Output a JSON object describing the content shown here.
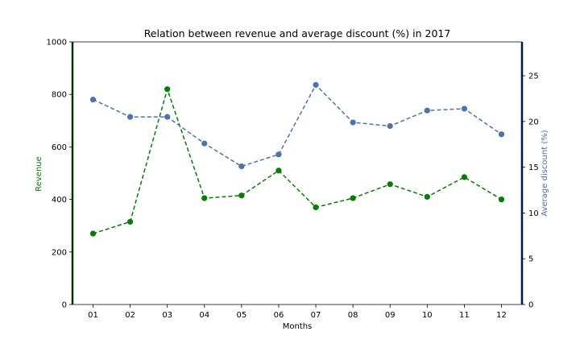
{
  "chart_data": {
    "type": "line",
    "title": "Relation between revenue and average discount (%) in 2017",
    "xlabel": "Months",
    "ylabel": "Revenue",
    "y2label": "Average discount (%)",
    "categories": [
      "01",
      "02",
      "03",
      "04",
      "05",
      "06",
      "07",
      "08",
      "09",
      "10",
      "11",
      "12"
    ],
    "ylim": [
      0,
      1000
    ],
    "y2lim": [
      0,
      28.7
    ],
    "yticks": [
      "0",
      "200",
      "400",
      "600",
      "800",
      "1000"
    ],
    "y2ticks": [
      "0",
      "5",
      "10",
      "15",
      "20",
      "25"
    ],
    "grid": false,
    "series": [
      {
        "axis": "left",
        "color": "#008000",
        "linestyle": "dashed",
        "marker": "circle",
        "values": [
          270,
          315,
          820,
          405,
          415,
          510,
          370,
          405,
          458,
          410,
          485,
          400
        ]
      },
      {
        "axis": "right",
        "color": "#4c72b0",
        "linestyle": "dashed",
        "marker": "circle",
        "values": [
          22.4,
          20.5,
          20.5,
          17.6,
          15.1,
          16.4,
          24.0,
          19.9,
          19.5,
          21.2,
          21.4,
          18.6
        ]
      }
    ],
    "axis_colors": {
      "left": "#003300",
      "right": "#001a4d"
    }
  }
}
